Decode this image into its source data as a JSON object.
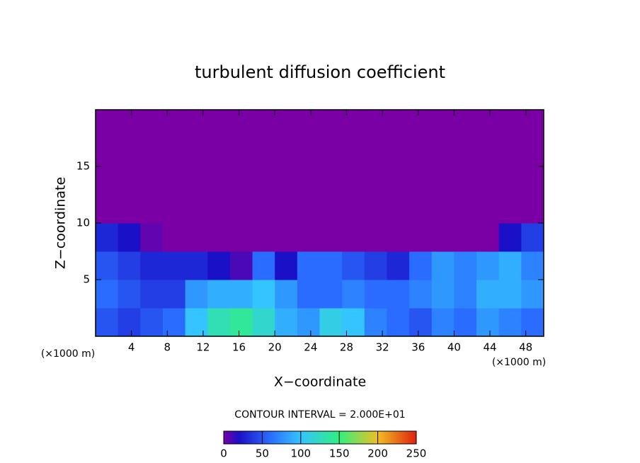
{
  "chart_data": {
    "type": "heatmap",
    "title": "turbulent diffusion coefficient",
    "xlabel": "X−coordinate",
    "ylabel": "Z−coordinate",
    "xunit": "(×1000 m)",
    "contour_text": "CONTOUR INTERVAL = 2.000E+01",
    "xlim": [
      0,
      50
    ],
    "ylim": [
      0,
      20
    ],
    "xticks": [
      4,
      8,
      12,
      16,
      20,
      24,
      28,
      32,
      36,
      40,
      44,
      48
    ],
    "yticks": [
      5,
      10,
      15
    ],
    "x_edges": [
      0,
      2.5,
      5,
      7.5,
      10,
      12.5,
      15,
      17.5,
      20,
      22.5,
      25,
      27.5,
      30,
      32.5,
      35,
      37.5,
      40,
      42.5,
      45,
      47.5,
      50
    ],
    "z_edges": [
      0,
      2.5,
      5,
      7.5,
      10,
      12.5,
      15,
      17.5,
      20
    ],
    "z": [
      [
        50,
        40,
        50,
        60,
        100,
        130,
        140,
        120,
        90,
        80,
        110,
        100,
        70,
        60,
        50,
        70,
        60,
        80,
        70,
        60
      ],
      [
        60,
        50,
        40,
        40,
        80,
        90,
        90,
        100,
        80,
        60,
        60,
        70,
        60,
        60,
        70,
        80,
        70,
        90,
        90,
        80
      ],
      [
        50,
        40,
        30,
        30,
        30,
        20,
        10,
        60,
        20,
        60,
        60,
        50,
        40,
        30,
        60,
        80,
        70,
        80,
        90,
        70
      ],
      [
        30,
        20,
        5,
        0,
        0,
        0,
        0,
        0,
        0,
        0,
        0,
        0,
        0,
        0,
        0,
        0,
        0,
        0,
        20,
        40
      ],
      [
        0,
        0,
        0,
        0,
        0,
        0,
        0,
        0,
        0,
        0,
        0,
        0,
        0,
        0,
        0,
        0,
        0,
        0,
        0,
        0
      ],
      [
        0,
        0,
        0,
        0,
        0,
        0,
        0,
        0,
        0,
        0,
        0,
        0,
        0,
        0,
        0,
        0,
        0,
        0,
        0,
        0
      ],
      [
        0,
        0,
        0,
        0,
        0,
        0,
        0,
        0,
        0,
        0,
        0,
        0,
        0,
        0,
        0,
        0,
        0,
        0,
        0,
        0
      ],
      [
        0,
        0,
        0,
        0,
        0,
        0,
        0,
        0,
        0,
        0,
        0,
        0,
        0,
        0,
        0,
        0,
        0,
        0,
        0,
        0
      ]
    ],
    "clim": [
      0,
      250
    ],
    "cticks": [
      0,
      50,
      100,
      150,
      200,
      250
    ],
    "colorscale": [
      {
        "value": 0,
        "color": "#7a00a6"
      },
      {
        "value": 20,
        "color": "#1a10c8"
      },
      {
        "value": 60,
        "color": "#2a6cff"
      },
      {
        "value": 100,
        "color": "#34c4ff"
      },
      {
        "value": 150,
        "color": "#30f080"
      },
      {
        "value": 200,
        "color": "#f0c020"
      },
      {
        "value": 250,
        "color": "#e02010"
      }
    ]
  }
}
